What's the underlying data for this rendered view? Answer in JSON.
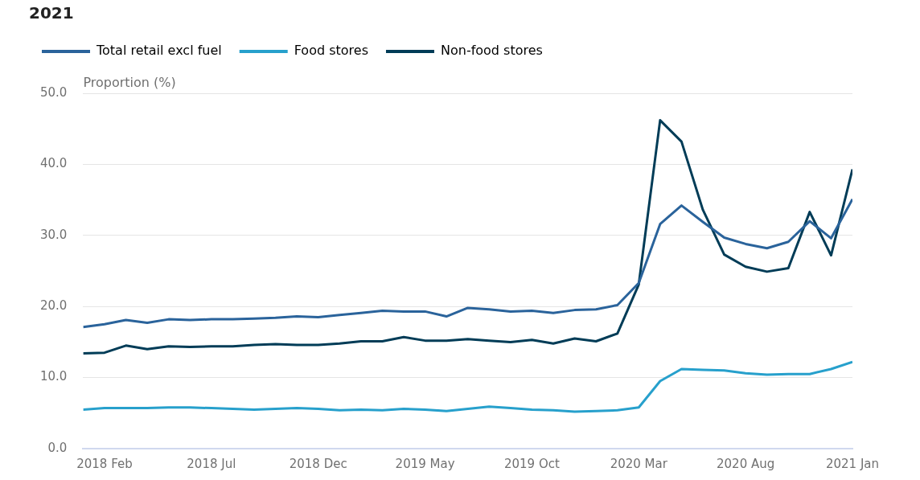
{
  "chart_data": {
    "type": "line",
    "title": "2021",
    "ylabel": "Proportion (%)",
    "x": [
      "2018-01",
      "2018-02",
      "2018-03",
      "2018-04",
      "2018-05",
      "2018-06",
      "2018-07",
      "2018-08",
      "2018-09",
      "2018-10",
      "2018-11",
      "2018-12",
      "2019-01",
      "2019-02",
      "2019-03",
      "2019-04",
      "2019-05",
      "2019-06",
      "2019-07",
      "2019-08",
      "2019-09",
      "2019-10",
      "2019-11",
      "2019-12",
      "2020-01",
      "2020-02",
      "2020-03",
      "2020-04",
      "2020-05",
      "2020-06",
      "2020-07",
      "2020-08",
      "2020-09",
      "2020-10",
      "2020-11",
      "2020-12",
      "2021-01"
    ],
    "series": [
      {
        "name": "Total retail excl fuel",
        "color": "#2a639b",
        "values": [
          17.1,
          17.5,
          18.1,
          17.7,
          18.2,
          18.1,
          18.2,
          18.2,
          18.3,
          18.4,
          18.6,
          18.5,
          18.8,
          19.1,
          19.4,
          19.3,
          19.3,
          18.6,
          19.8,
          19.6,
          19.3,
          19.4,
          19.1,
          19.5,
          19.6,
          20.2,
          23.3,
          31.6,
          34.2,
          31.9,
          29.7,
          28.8,
          28.2,
          29.1,
          32.0,
          29.6,
          35.1
        ]
      },
      {
        "name": "Food stores",
        "color": "#27a0cc",
        "values": [
          5.5,
          5.7,
          5.7,
          5.7,
          5.8,
          5.8,
          5.7,
          5.6,
          5.5,
          5.6,
          5.7,
          5.6,
          5.4,
          5.5,
          5.4,
          5.6,
          5.5,
          5.3,
          5.6,
          5.9,
          5.7,
          5.5,
          5.4,
          5.2,
          5.3,
          5.4,
          5.8,
          9.5,
          11.2,
          11.1,
          11.0,
          10.6,
          10.4,
          10.5,
          10.5,
          11.2,
          12.2
        ]
      },
      {
        "name": "Non-food stores",
        "color": "#003c57",
        "values": [
          13.4,
          13.5,
          14.5,
          14.0,
          14.4,
          14.3,
          14.4,
          14.4,
          14.6,
          14.7,
          14.6,
          14.6,
          14.8,
          15.1,
          15.1,
          15.7,
          15.2,
          15.2,
          15.4,
          15.2,
          15.0,
          15.3,
          14.8,
          15.5,
          15.1,
          16.2,
          23.1,
          46.2,
          43.2,
          33.6,
          27.3,
          25.6,
          24.9,
          25.4,
          33.3,
          27.2,
          39.3
        ]
      }
    ],
    "xlim": [
      "2018-01",
      "2021-01"
    ],
    "xticks": [
      {
        "value": "2018-02",
        "label": "2018 Feb"
      },
      {
        "value": "2018-07",
        "label": "2018 Jul"
      },
      {
        "value": "2018-12",
        "label": "2018 Dec"
      },
      {
        "value": "2019-05",
        "label": "2019 May"
      },
      {
        "value": "2019-10",
        "label": "2019 Oct"
      },
      {
        "value": "2020-03",
        "label": "2020 Mar"
      },
      {
        "value": "2020-08",
        "label": "2020 Aug"
      },
      {
        "value": "2021-01",
        "label": "2021 Jan"
      }
    ],
    "ylim": [
      0,
      50
    ],
    "yticks": [
      {
        "value": 0,
        "label": "0.0"
      },
      {
        "value": 10,
        "label": "10.0"
      },
      {
        "value": 20,
        "label": "20.0"
      },
      {
        "value": 30,
        "label": "30.0"
      },
      {
        "value": 40,
        "label": "40.0"
      },
      {
        "value": 50,
        "label": "50.0"
      }
    ],
    "grid": "y",
    "legend": "top left",
    "marker": "none",
    "line_style": "solid"
  }
}
